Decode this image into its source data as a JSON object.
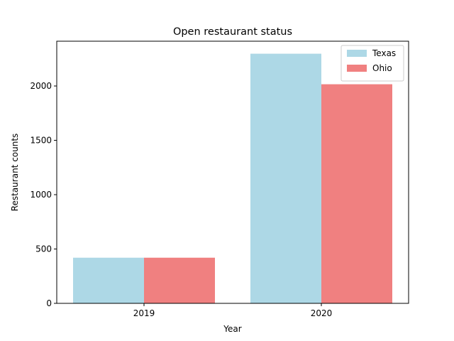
{
  "chart_data": {
    "type": "bar",
    "title": "Open restaurant status",
    "xlabel": "Year",
    "ylabel": "Restaurant counts",
    "categories": [
      "2019",
      "2020"
    ],
    "series": [
      {
        "name": "Texas",
        "color": "#add8e6",
        "values": [
          420,
          2297
        ]
      },
      {
        "name": "Ohio",
        "color": "#f08080",
        "values": [
          420,
          2016
        ]
      }
    ],
    "ylim": [
      0,
      2412
    ],
    "yticks": [
      0,
      500,
      1000,
      1500,
      2000
    ],
    "legend": "top-right",
    "grid": false
  }
}
